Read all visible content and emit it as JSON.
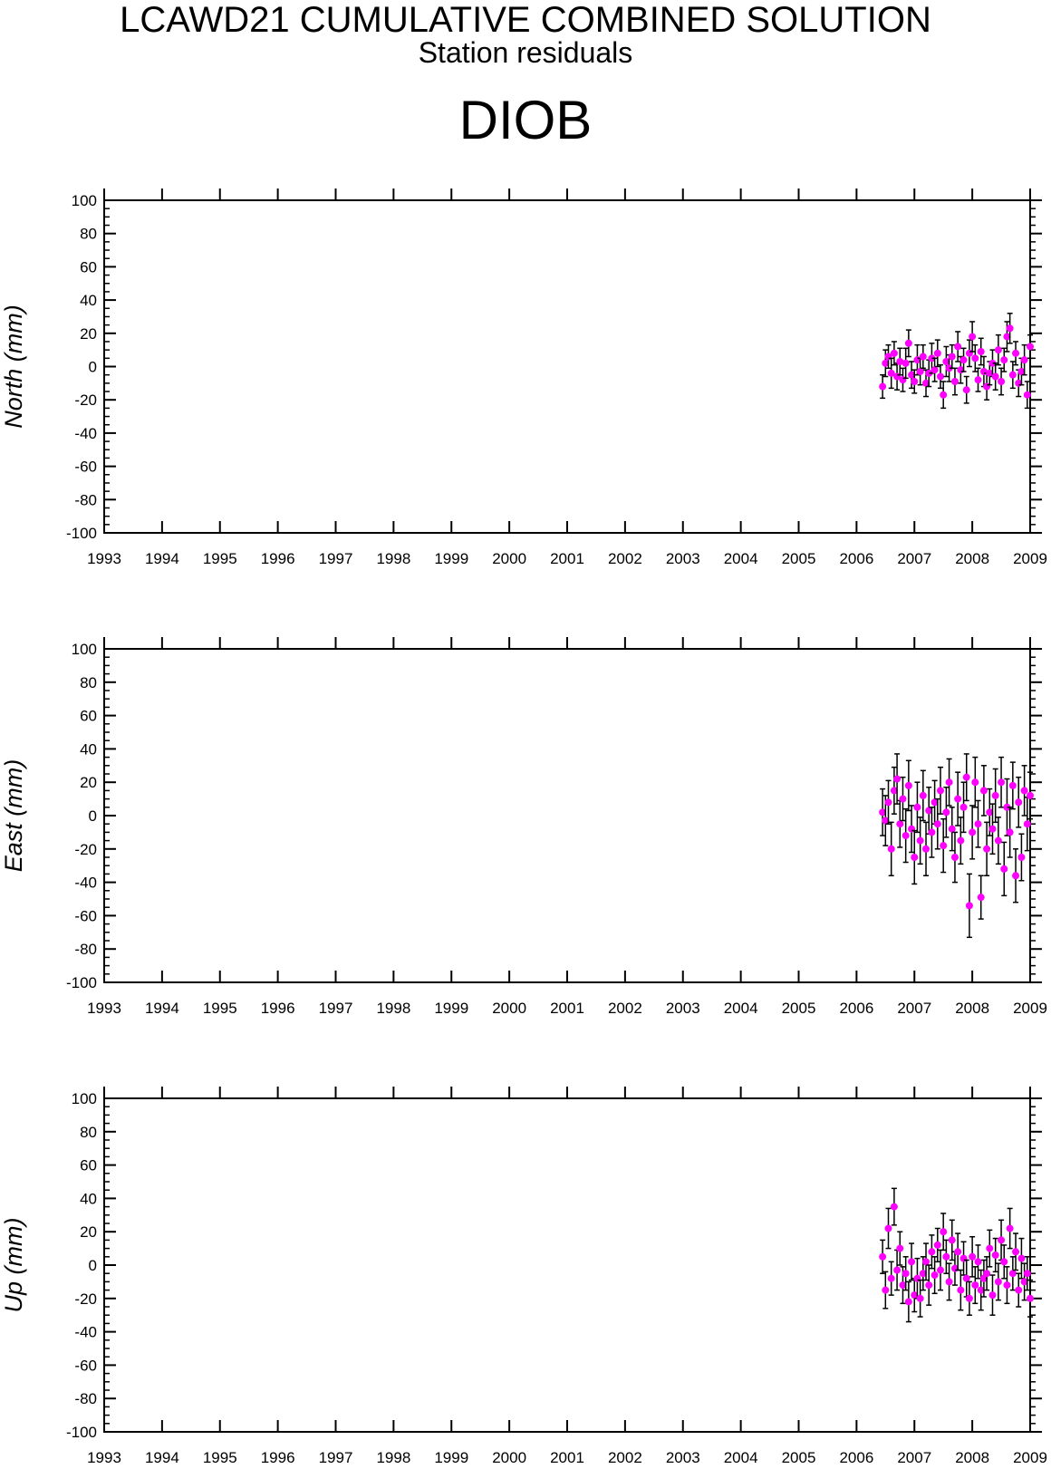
{
  "header": {
    "title": "LCAWD21 CUMULATIVE COMBINED SOLUTION",
    "subtitle": "Station residuals",
    "station": "DIOB"
  },
  "colors": {
    "point": "#ff00ff",
    "errorbar": "#000000",
    "axis": "#000000"
  },
  "chart_data": [
    {
      "type": "scatter",
      "component": "north",
      "ylabel": "North (mm)",
      "xlim": [
        1993,
        2009
      ],
      "ylim": [
        -100,
        100
      ],
      "x_ticks": [
        "1993",
        "1994",
        "1995",
        "1996",
        "1997",
        "1998",
        "1999",
        "2000",
        "2001",
        "2002",
        "2003",
        "2004",
        "2005",
        "2006",
        "2007",
        "2008",
        "2009"
      ],
      "y_ticks": [
        "100",
        "80",
        "60",
        "40",
        "20",
        "0",
        "-20",
        "-40",
        "-60",
        "-80",
        "-100"
      ],
      "error_bars": true,
      "x": [
        2006.45,
        2006.5,
        2006.55,
        2006.6,
        2006.65,
        2006.7,
        2006.75,
        2006.8,
        2006.85,
        2006.9,
        2006.95,
        2007.0,
        2007.05,
        2007.1,
        2007.15,
        2007.2,
        2007.25,
        2007.3,
        2007.35,
        2007.4,
        2007.45,
        2007.5,
        2007.55,
        2007.6,
        2007.65,
        2007.7,
        2007.75,
        2007.8,
        2007.85,
        2007.9,
        2007.95,
        2008.0,
        2008.05,
        2008.1,
        2008.15,
        2008.2,
        2008.25,
        2008.3,
        2008.35,
        2008.4,
        2008.45,
        2008.5,
        2008.55,
        2008.6,
        2008.65,
        2008.7,
        2008.75,
        2008.8,
        2008.85,
        2008.9,
        2008.95,
        2009.0
      ],
      "y": [
        -12,
        2,
        6,
        -4,
        8,
        -6,
        3,
        -8,
        2,
        14,
        -5,
        -9,
        4,
        -3,
        6,
        -10,
        -4,
        5,
        -2,
        8,
        -6,
        -17,
        3,
        -1,
        6,
        -9,
        12,
        -2,
        4,
        -14,
        8,
        18,
        5,
        -8,
        9,
        -3,
        -12,
        -4,
        2,
        -6,
        10,
        -9,
        4,
        18,
        23,
        -5,
        8,
        -10,
        -3,
        4,
        -17,
        12
      ],
      "err": [
        7,
        8,
        7,
        9,
        7,
        8,
        8,
        7,
        9,
        8,
        8,
        7,
        9,
        8,
        7,
        8,
        8,
        9,
        7,
        8,
        7,
        8,
        9,
        8,
        7,
        8,
        9,
        8,
        7,
        8,
        8,
        9,
        8,
        7,
        8,
        9,
        8,
        7,
        8,
        8,
        9,
        8,
        7,
        9,
        9,
        8,
        7,
        8,
        8,
        9,
        8,
        7
      ]
    },
    {
      "type": "scatter",
      "component": "east",
      "ylabel": "East (mm)",
      "xlim": [
        1993,
        2009
      ],
      "ylim": [
        -100,
        100
      ],
      "x_ticks": [
        "1993",
        "1994",
        "1995",
        "1996",
        "1997",
        "1998",
        "1999",
        "2000",
        "2001",
        "2002",
        "2003",
        "2004",
        "2005",
        "2006",
        "2007",
        "2008",
        "2009"
      ],
      "y_ticks": [
        "100",
        "80",
        "60",
        "40",
        "20",
        "0",
        "-20",
        "-40",
        "-60",
        "-80",
        "-100"
      ],
      "error_bars": true,
      "x": [
        2006.45,
        2006.5,
        2006.55,
        2006.6,
        2006.65,
        2006.7,
        2006.75,
        2006.8,
        2006.85,
        2006.9,
        2006.95,
        2007.0,
        2007.05,
        2007.1,
        2007.15,
        2007.2,
        2007.25,
        2007.3,
        2007.35,
        2007.4,
        2007.45,
        2007.5,
        2007.55,
        2007.6,
        2007.65,
        2007.7,
        2007.75,
        2007.8,
        2007.85,
        2007.9,
        2007.95,
        2008.0,
        2008.05,
        2008.1,
        2008.15,
        2008.2,
        2008.25,
        2008.3,
        2008.35,
        2008.4,
        2008.45,
        2008.5,
        2008.55,
        2008.6,
        2008.65,
        2008.7,
        2008.75,
        2008.8,
        2008.85,
        2008.9,
        2008.95,
        2009.0
      ],
      "y": [
        2,
        -3,
        8,
        -20,
        15,
        22,
        -5,
        10,
        -12,
        18,
        -8,
        -25,
        5,
        -15,
        12,
        -20,
        3,
        -10,
        8,
        -5,
        15,
        -18,
        2,
        20,
        -8,
        -25,
        10,
        -15,
        5,
        23,
        -54,
        -10,
        20,
        -5,
        -49,
        15,
        -20,
        2,
        -8,
        12,
        -15,
        20,
        -32,
        5,
        -10,
        18,
        -36,
        8,
        -25,
        15,
        -5,
        12
      ],
      "err": [
        14,
        15,
        13,
        16,
        14,
        15,
        14,
        13,
        16,
        15,
        14,
        16,
        15,
        14,
        15,
        16,
        14,
        15,
        13,
        15,
        14,
        16,
        15,
        14,
        13,
        15,
        16,
        14,
        15,
        14,
        19,
        16,
        15,
        14,
        13,
        15,
        16,
        14,
        15,
        16,
        14,
        15,
        16,
        17,
        15,
        14,
        16,
        15,
        14,
        15,
        16,
        14
      ]
    },
    {
      "type": "scatter",
      "component": "up",
      "ylabel": "Up (mm)",
      "xlim": [
        1993,
        2009
      ],
      "ylim": [
        -100,
        100
      ],
      "x_ticks": [
        "1993",
        "1994",
        "1995",
        "1996",
        "1997",
        "1998",
        "1999",
        "2000",
        "2001",
        "2002",
        "2003",
        "2004",
        "2005",
        "2006",
        "2007",
        "2008",
        "2009"
      ],
      "y_ticks": [
        "100",
        "80",
        "60",
        "40",
        "20",
        "0",
        "-20",
        "-40",
        "-60",
        "-80",
        "-100"
      ],
      "error_bars": true,
      "x": [
        2006.45,
        2006.5,
        2006.55,
        2006.6,
        2006.65,
        2006.7,
        2006.75,
        2006.8,
        2006.85,
        2006.9,
        2006.95,
        2007.0,
        2007.05,
        2007.1,
        2007.15,
        2007.2,
        2007.25,
        2007.3,
        2007.35,
        2007.4,
        2007.45,
        2007.5,
        2007.55,
        2007.6,
        2007.65,
        2007.7,
        2007.75,
        2007.8,
        2007.85,
        2007.9,
        2007.95,
        2008.0,
        2008.05,
        2008.1,
        2008.15,
        2008.2,
        2008.25,
        2008.3,
        2008.35,
        2008.4,
        2008.45,
        2008.5,
        2008.55,
        2008.6,
        2008.65,
        2008.7,
        2008.75,
        2008.8,
        2008.85,
        2008.9,
        2008.95,
        2009.0
      ],
      "y": [
        5,
        -15,
        22,
        -8,
        35,
        -3,
        10,
        -12,
        -5,
        -22,
        2,
        -18,
        -8,
        -20,
        -5,
        2,
        -12,
        8,
        -6,
        12,
        -3,
        20,
        5,
        -10,
        15,
        -2,
        8,
        -15,
        4,
        -8,
        -20,
        5,
        -12,
        2,
        -15,
        -8,
        -5,
        10,
        -18,
        6,
        -10,
        15,
        2,
        -12,
        22,
        -5,
        8,
        -15,
        4,
        -10,
        -5,
        -20
      ],
      "err": [
        10,
        11,
        12,
        10,
        11,
        12,
        10,
        11,
        10,
        12,
        11,
        10,
        12,
        11,
        10,
        11,
        12,
        10,
        11,
        10,
        12,
        11,
        10,
        11,
        12,
        10,
        11,
        12,
        10,
        11,
        10,
        12,
        11,
        10,
        12,
        11,
        10,
        11,
        12,
        10,
        11,
        12,
        10,
        11,
        12,
        10,
        11,
        10,
        12,
        11,
        10,
        11
      ]
    }
  ]
}
